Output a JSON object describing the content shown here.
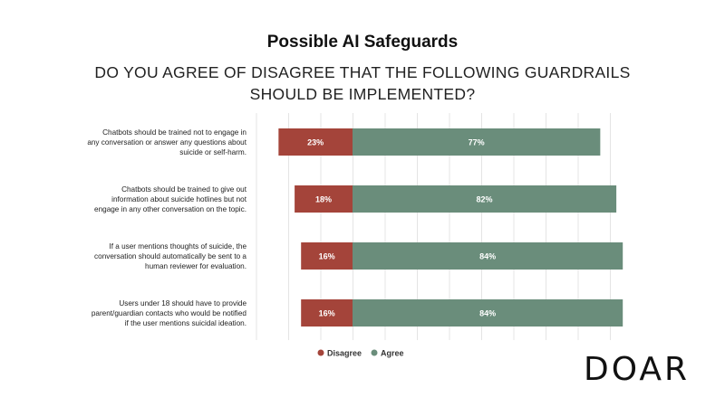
{
  "chart_data": {
    "type": "bar",
    "orientation": "horizontal",
    "stacked": "diverging",
    "title": "Possible AI Safeguards",
    "subtitle": "DO YOU AGREE OF DISAGREE THAT THE FOLLOWING GUARDRAILS SHOULD BE IMPLEMENTED?",
    "categories": [
      "Chatbots should be trained not to engage in any conversation or answer any questions about suicide or self-harm.",
      "Chatbots should be trained to give out information about suicide hotlines but not engage in any other conversation on the topic.",
      "If a user mentions thoughts of suicide, the conversation should automatically be sent to a human reviewer for evaluation.",
      "Users under 18 should have to provide parent/guardian contacts who would be notified if the user mentions suicidal ideation."
    ],
    "series": [
      {
        "name": "Disagree",
        "values": [
          23,
          18,
          16,
          16
        ],
        "color": "#a4443a"
      },
      {
        "name": "Agree",
        "values": [
          77,
          82,
          84,
          84
        ],
        "color": "#6a8d7b"
      }
    ],
    "value_suffix": "%",
    "legend_position": "bottom-center",
    "grid": true
  },
  "brand": {
    "logo_text": "DOAR"
  },
  "colors": {
    "gridline": "#e4e4e4",
    "label_text": "#ffffff"
  }
}
